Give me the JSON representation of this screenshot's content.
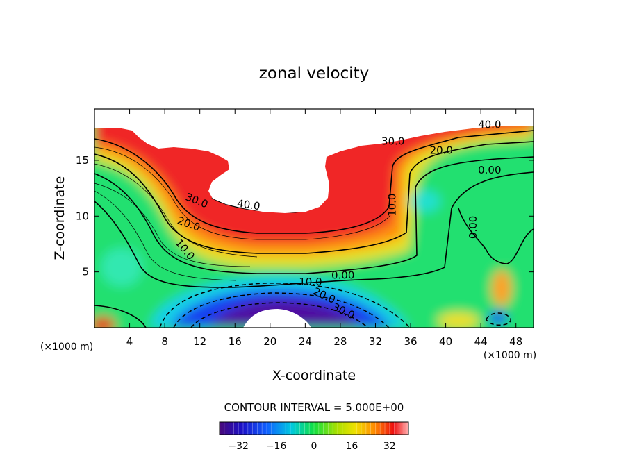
{
  "chart_data": {
    "type": "contour",
    "title": "zonal velocity",
    "xlabel": "X-coordinate",
    "ylabel": "Z-coordinate",
    "x_unit_left": "(×1000 m)",
    "x_unit_right": "(×1000 m)",
    "xlim": [
      0,
      50
    ],
    "ylim": [
      0,
      19.6
    ],
    "x_ticks": [
      4,
      8,
      12,
      16,
      20,
      24,
      28,
      32,
      36,
      40,
      44,
      48
    ],
    "y_ticks": [
      5,
      10,
      15
    ],
    "contour_interval_text": "CONTOUR INTERVAL = 5.000E+00",
    "contour_labels": [
      {
        "text": "40.0",
        "x": 17.5,
        "y": 10.7,
        "angle": 8
      },
      {
        "text": "30.0",
        "x": 11.5,
        "y": 11.1,
        "angle": 22
      },
      {
        "text": "20.0",
        "x": 10.6,
        "y": 9.0,
        "angle": 20
      },
      {
        "text": "10.0",
        "x": 10.0,
        "y": 6.8,
        "angle": 50
      },
      {
        "text": "0.00",
        "x": 28.3,
        "y": 4.4,
        "angle": 0
      },
      {
        "text": "10.0",
        "x": 24.6,
        "y": 3.8,
        "angle": 0
      },
      {
        "text": "20.0",
        "x": 26.0,
        "y": 2.6,
        "angle": 25
      },
      {
        "text": "30.0",
        "x": 28.2,
        "y": 1.2,
        "angle": 25
      },
      {
        "text": "40.0",
        "x": 45.0,
        "y": 17.9,
        "angle": 0
      },
      {
        "text": "30.0",
        "x": 34.0,
        "y": 16.4,
        "angle": 0
      },
      {
        "text": "20.0",
        "x": 39.5,
        "y": 15.6,
        "angle": 0
      },
      {
        "text": "0.00",
        "x": 45.0,
        "y": 13.8,
        "angle": 0
      },
      {
        "text": "10.0",
        "x": 34.3,
        "y": 11.0,
        "angle": -90
      },
      {
        "text": "0.00",
        "x": 43.5,
        "y": 9.0,
        "angle": -90
      }
    ],
    "colorbar": {
      "min": -40,
      "max": 40,
      "ticks": [
        -32,
        -16,
        0,
        16,
        32
      ],
      "tick_labels": [
        "−32",
        "−16",
        "0",
        "16",
        "32"
      ]
    }
  },
  "colors": {
    "background": "#ffffff",
    "axes": "#000000",
    "topography": "#ffffff",
    "contour_line": "#000000"
  }
}
